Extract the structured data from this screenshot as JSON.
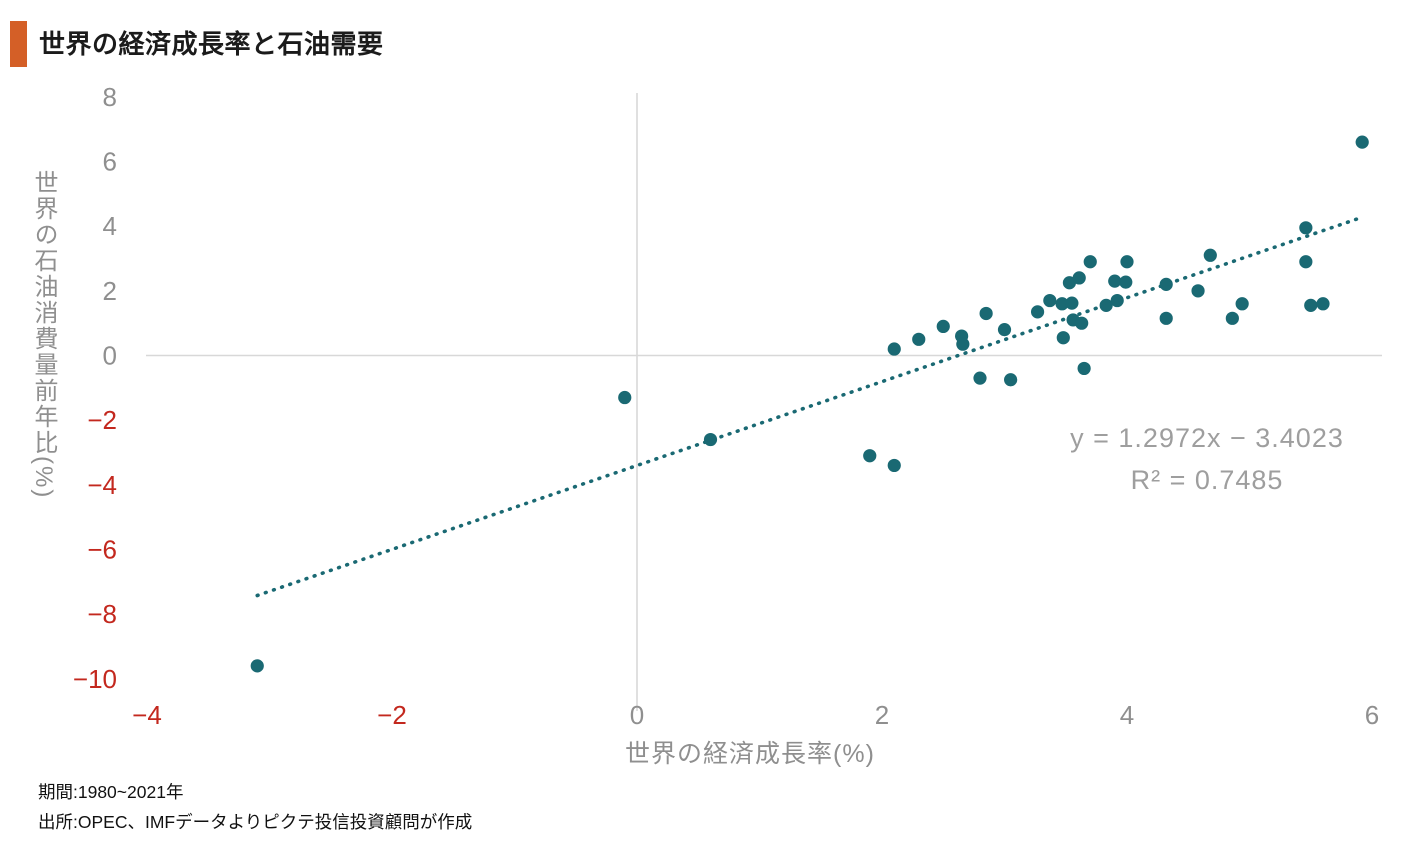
{
  "header": {
    "title": "世界の経済成長率と石油需要"
  },
  "chart_data": {
    "type": "scatter",
    "title": "世界の経済成長率と石油需要",
    "xlabel": "世界の経済成長率(%)",
    "ylabel": "世界の石油消費量前年比(%)",
    "xlim": [
      -4,
      6
    ],
    "ylim": [
      -10,
      8
    ],
    "xticks": [
      -4,
      -2,
      0,
      2,
      4,
      6
    ],
    "yticks": [
      8,
      6,
      4,
      2,
      0,
      -2,
      -4,
      -6,
      -8,
      -10
    ],
    "grid": "zero-axes-only",
    "legend": "none",
    "points": [
      [
        -3.1,
        -9.6
      ],
      [
        -0.1,
        -1.3
      ],
      [
        0.6,
        -2.6
      ],
      [
        1.9,
        -3.1
      ],
      [
        2.1,
        -3.4
      ],
      [
        2.1,
        0.2
      ],
      [
        2.3,
        0.5
      ],
      [
        2.5,
        0.9
      ],
      [
        2.65,
        0.6
      ],
      [
        2.66,
        0.35
      ],
      [
        2.85,
        1.3
      ],
      [
        3.0,
        0.8
      ],
      [
        2.8,
        -0.7
      ],
      [
        3.05,
        -0.75
      ],
      [
        3.27,
        1.35
      ],
      [
        3.37,
        1.7
      ],
      [
        3.47,
        1.6
      ],
      [
        3.55,
        1.62
      ],
      [
        3.53,
        2.25
      ],
      [
        3.61,
        2.4
      ],
      [
        3.7,
        2.9
      ],
      [
        3.56,
        1.1
      ],
      [
        3.63,
        1.0
      ],
      [
        3.48,
        0.55
      ],
      [
        3.65,
        -0.4
      ],
      [
        3.83,
        1.55
      ],
      [
        3.92,
        1.7
      ],
      [
        3.9,
        2.3
      ],
      [
        3.99,
        2.27
      ],
      [
        4.0,
        2.9
      ],
      [
        4.32,
        2.2
      ],
      [
        4.32,
        1.15
      ],
      [
        4.58,
        2.0
      ],
      [
        4.68,
        3.1
      ],
      [
        4.86,
        1.15
      ],
      [
        4.94,
        1.6
      ],
      [
        5.46,
        3.95
      ],
      [
        5.46,
        2.9
      ],
      [
        5.5,
        1.55
      ],
      [
        5.6,
        1.6
      ],
      [
        5.92,
        6.6
      ]
    ],
    "trendline": {
      "slope": 1.2972,
      "intercept": -3.4023,
      "x_start": -3.1,
      "x_end": 5.92,
      "style": "dotted"
    },
    "annotations": {
      "equation": "y = 1.2972x − 3.4023",
      "r_squared": "R² = 0.7485"
    },
    "colors": {
      "point": "#1a6973",
      "trendline": "#1a6973",
      "tick_positive": "#8f8f8f",
      "tick_negative": "#c3281e",
      "axis_title": "#8f8f8f",
      "gridline": "#d8d8d8",
      "equation": "#9e9e9e",
      "title_accent": "#d45f27"
    }
  },
  "footer": {
    "period": "期間:1980~2021年",
    "source": "出所:OPEC、IMFデータよりピクテ投信投資顧問が作成"
  }
}
